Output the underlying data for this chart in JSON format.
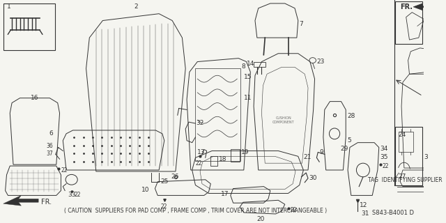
{
  "background_color": "#f5f5f0",
  "diagram_color": "#333333",
  "caution_text": "( CAUTION  SUPPLIERS FOR PAD COMP , FRAME COMP , TRIM COVER ARE NOT INTERCHANGEABLE )",
  "part_number": "S843-B4001 D",
  "fr_label": "FR.",
  "tag_text": "TAG  IDENTIFYING SUPPLIER",
  "fig_size": [
    6.4,
    3.2
  ],
  "dpi": 100
}
